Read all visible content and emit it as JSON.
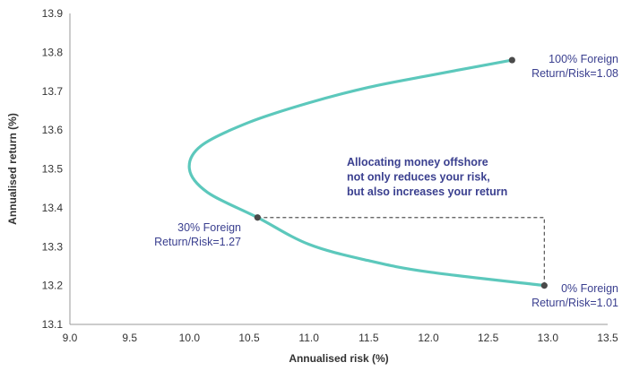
{
  "chart_data": {
    "type": "line",
    "xlabel": "Annualised risk (%)",
    "ylabel": "Annualised return (%)",
    "xlim": [
      9.0,
      13.5
    ],
    "ylim": [
      13.1,
      13.9
    ],
    "x_ticks": [
      "9.0",
      "9.5",
      "10.0",
      "10.5",
      "11.0",
      "11.5",
      "12.0",
      "12.5",
      "13.0",
      "13.5"
    ],
    "y_ticks": [
      "13.1",
      "13.2",
      "13.3",
      "13.4",
      "13.5",
      "13.6",
      "13.7",
      "13.8",
      "13.9"
    ],
    "grid": false,
    "series": [
      {
        "color": "#5cc8bc",
        "points": [
          {
            "x": 12.97,
            "y": 13.2
          },
          {
            "x": 12.0,
            "y": 13.235
          },
          {
            "x": 11.5,
            "y": 13.264
          },
          {
            "x": 11.0,
            "y": 13.306
          },
          {
            "x": 10.57,
            "y": 13.375
          },
          {
            "x": 10.15,
            "y": 13.44
          },
          {
            "x": 10.0,
            "y": 13.5
          },
          {
            "x": 10.1,
            "y": 13.56
          },
          {
            "x": 10.5,
            "y": 13.62
          },
          {
            "x": 11.0,
            "y": 13.67
          },
          {
            "x": 11.5,
            "y": 13.71
          },
          {
            "x": 12.0,
            "y": 13.74
          },
          {
            "x": 12.7,
            "y": 13.78
          }
        ]
      }
    ],
    "highlights": [
      {
        "x": 12.7,
        "y": 13.78,
        "lines": [
          "100% Foreign",
          "Return/Risk=1.08"
        ]
      },
      {
        "x": 10.57,
        "y": 13.375,
        "lines": [
          "30% Foreign",
          "Return/Risk=1.27"
        ]
      },
      {
        "x": 12.97,
        "y": 13.2,
        "lines": [
          "0% Foreign",
          "Return/Risk=1.01"
        ]
      }
    ],
    "annotation": [
      "Allocating money offshore",
      "not only reduces your risk,",
      "but also increases your return"
    ],
    "dashed_guide": {
      "from": {
        "x": 10.57,
        "y": 13.375
      },
      "corner": {
        "x": 12.97,
        "y": 13.375
      },
      "to": {
        "x": 12.97,
        "y": 13.2
      }
    },
    "colors": {
      "line": "#5cc8bc",
      "label": "#3a3f8f",
      "marker": "#4a4a4a",
      "axis": "#9a9a9a",
      "text": "#333333",
      "dashed": "#555555"
    }
  }
}
